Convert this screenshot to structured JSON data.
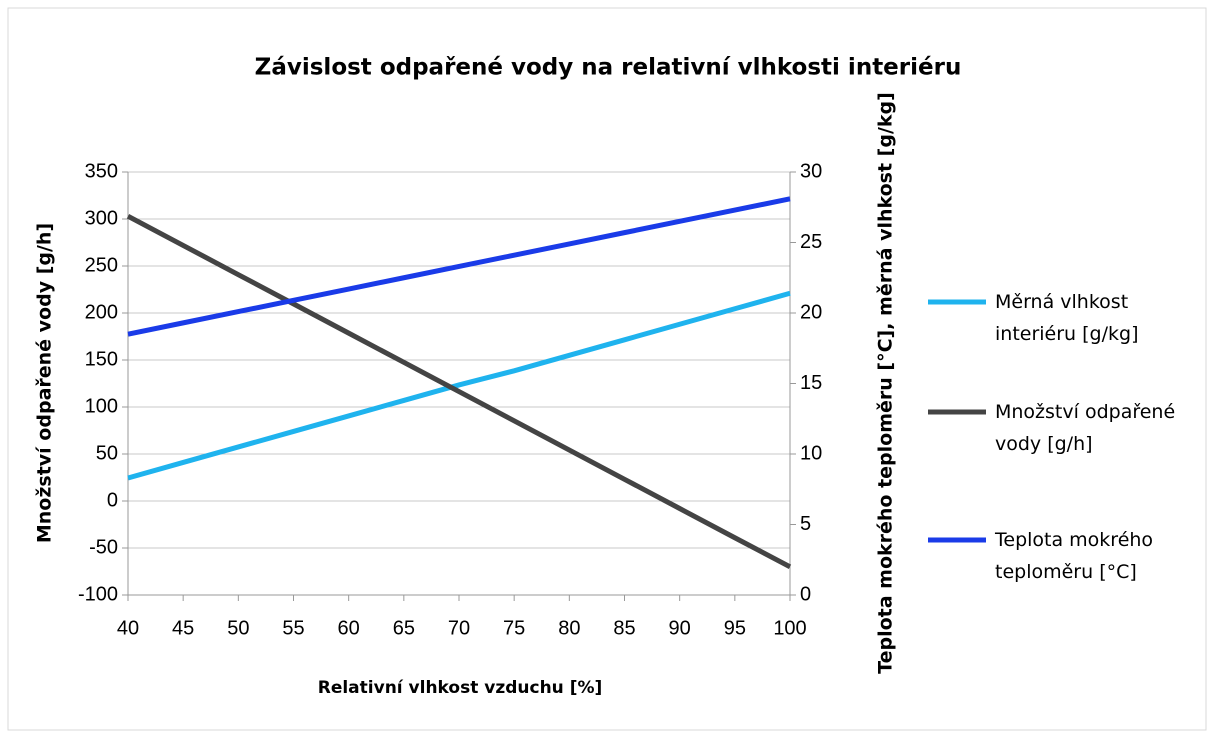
{
  "chart_data": {
    "type": "line",
    "title": "Závislost odpařené vody na relativní vlhkosti interiéru",
    "xlabel": "Relativní vlhkost vzduchu [%]",
    "ylabel": "Množství odpařené vody [g/h]",
    "y2label": "Teplota mokrého teploměru [°C], měrná vlhkost [g/kg]",
    "x": [
      40,
      45,
      50,
      55,
      60,
      65,
      70,
      75,
      80,
      85,
      90,
      95,
      100
    ],
    "series": [
      {
        "name": "Měrná vlhkost interiéru [g/kg]",
        "color": "#1fb3ee",
        "axis": "y2",
        "values": [
          8.3,
          9.4,
          10.5,
          11.6,
          12.7,
          13.8,
          14.9,
          15.9,
          17.0,
          18.1,
          19.2,
          20.3,
          21.4
        ]
      },
      {
        "name": "Množství odpařené vody [g/h]",
        "color": "#444444",
        "values": [
          303,
          271.9,
          240.8,
          209.7,
          178.6,
          147.5,
          116.4,
          85.3,
          54.2,
          23.1,
          -8.0,
          -39.1,
          -70
        ]
      },
      {
        "name": "Teplota mokrého teploměru [°C]",
        "color": "#1a3be8",
        "axis": "y2",
        "values": [
          18.5,
          19.3,
          20.1,
          20.9,
          21.7,
          22.5,
          23.3,
          24.1,
          24.9,
          25.7,
          26.5,
          27.3,
          28.1
        ]
      }
    ],
    "xlim": [
      40,
      100
    ],
    "xticks": [
      40,
      45,
      50,
      55,
      60,
      65,
      70,
      75,
      80,
      85,
      90,
      95,
      100
    ],
    "ylim": [
      -100,
      350
    ],
    "yticks": [
      -100,
      -50,
      0,
      50,
      100,
      150,
      200,
      250,
      300,
      350
    ],
    "y2lim": [
      0,
      30
    ],
    "y2ticks": [
      0,
      5,
      10,
      15,
      20,
      25,
      30
    ],
    "grid": true,
    "legend": "right"
  }
}
